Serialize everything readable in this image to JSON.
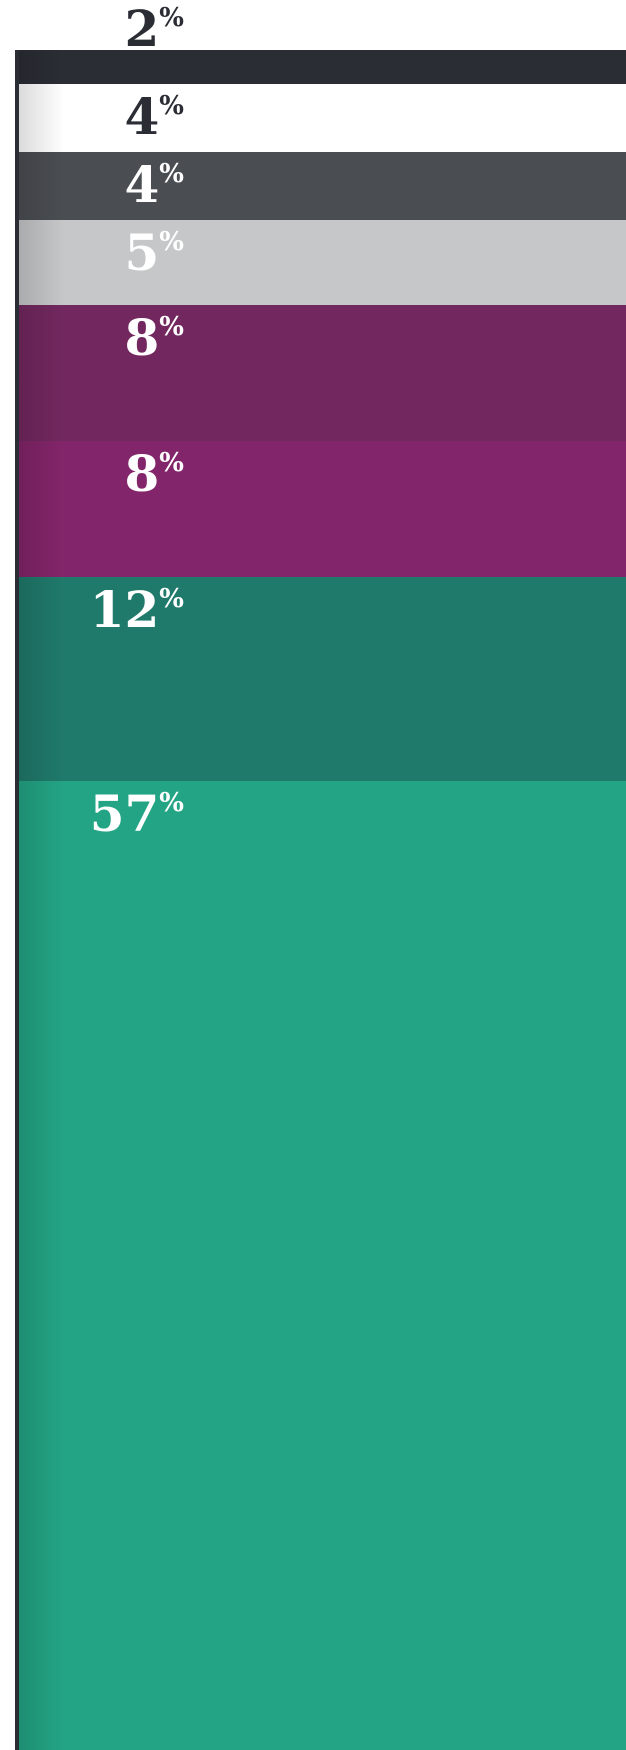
{
  "chart_data": {
    "type": "stacked-column",
    "values": [
      2,
      4,
      4,
      5,
      8,
      8,
      12,
      57
    ],
    "value_labels": [
      "2%",
      "4%",
      "4%",
      "5%",
      "8%",
      "8%",
      "12%",
      "57%"
    ],
    "colors": [
      "#2b2d35",
      "#ffffff",
      "#4a4d52",
      "#c6c7c8",
      "#72285f",
      "#83256a",
      "#1f7a6b",
      "#23a585"
    ],
    "label_colors": [
      "#2b2d35",
      "#2b2d35",
      "#ffffff",
      "#ffffff",
      "#ffffff",
      "#ffffff",
      "#ffffff",
      "#ffffff"
    ]
  }
}
